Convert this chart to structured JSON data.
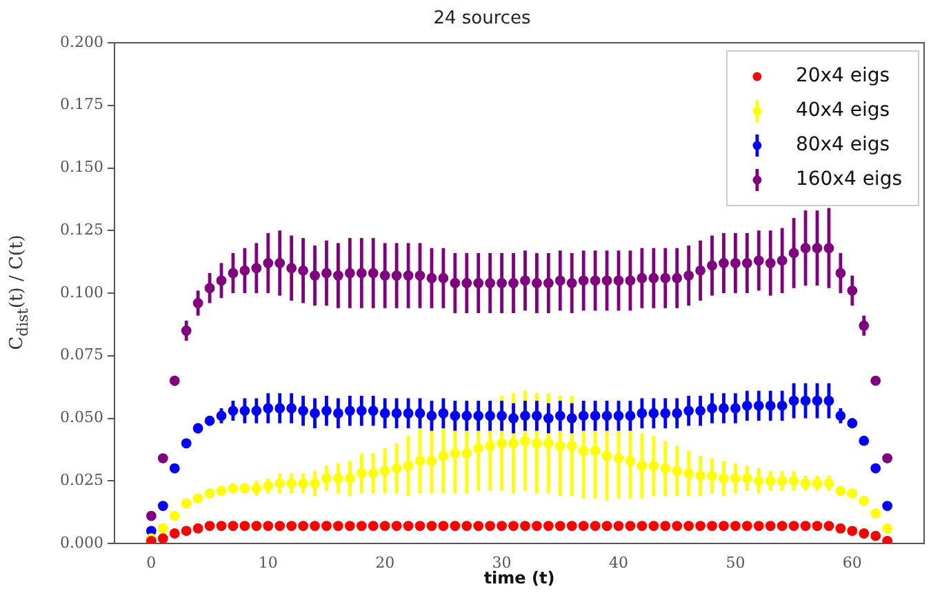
{
  "chart_data": {
    "type": "scatter",
    "title": "24 sources",
    "xlabel": "time (t)",
    "ylabel": "C$_{dist}$(t) / C(t)",
    "x": [
      0,
      1,
      2,
      3,
      4,
      5,
      6,
      7,
      8,
      9,
      10,
      11,
      12,
      13,
      14,
      15,
      16,
      17,
      18,
      19,
      20,
      21,
      22,
      23,
      24,
      25,
      26,
      27,
      28,
      29,
      30,
      31,
      32,
      33,
      34,
      35,
      36,
      37,
      38,
      39,
      40,
      41,
      42,
      43,
      44,
      45,
      46,
      47,
      48,
      49,
      50,
      51,
      52,
      53,
      54,
      55,
      56,
      57,
      58,
      59,
      60,
      61,
      62,
      63
    ],
    "series": [
      {
        "name": "20x4 eigs",
        "color": "#ff0000",
        "values": [
          0.001,
          0.002,
          0.004,
          0.005,
          0.006,
          0.007,
          0.007,
          0.007,
          0.007,
          0.007,
          0.007,
          0.007,
          0.007,
          0.007,
          0.007,
          0.007,
          0.007,
          0.007,
          0.007,
          0.007,
          0.007,
          0.007,
          0.007,
          0.007,
          0.007,
          0.007,
          0.007,
          0.007,
          0.007,
          0.007,
          0.007,
          0.007,
          0.007,
          0.007,
          0.007,
          0.007,
          0.007,
          0.007,
          0.007,
          0.007,
          0.007,
          0.007,
          0.007,
          0.007,
          0.007,
          0.007,
          0.007,
          0.007,
          0.007,
          0.007,
          0.007,
          0.007,
          0.007,
          0.007,
          0.007,
          0.007,
          0.007,
          0.007,
          0.007,
          0.006,
          0.005,
          0.004,
          0.003,
          0.001
        ]
      },
      {
        "name": "40x4 eigs",
        "color": "#ffff00",
        "values": [
          0.002,
          0.006,
          0.011,
          0.016,
          0.018,
          0.02,
          0.021,
          0.022,
          0.022,
          0.022,
          0.023,
          0.024,
          0.024,
          0.024,
          0.024,
          0.026,
          0.026,
          0.026,
          0.028,
          0.028,
          0.029,
          0.03,
          0.031,
          0.033,
          0.033,
          0.035,
          0.036,
          0.036,
          0.038,
          0.039,
          0.04,
          0.04,
          0.041,
          0.04,
          0.04,
          0.039,
          0.039,
          0.037,
          0.037,
          0.035,
          0.034,
          0.033,
          0.031,
          0.031,
          0.03,
          0.029,
          0.028,
          0.027,
          0.027,
          0.026,
          0.026,
          0.026,
          0.025,
          0.025,
          0.025,
          0.025,
          0.024,
          0.024,
          0.024,
          0.021,
          0.02,
          0.017,
          0.012,
          0.006
        ],
        "errors": [
          0.001,
          0.001,
          0.001,
          0.001,
          0.001,
          0.001,
          0.001,
          0.002,
          0.002,
          0.003,
          0.003,
          0.004,
          0.004,
          0.004,
          0.005,
          0.005,
          0.006,
          0.007,
          0.008,
          0.008,
          0.009,
          0.01,
          0.012,
          0.013,
          0.013,
          0.015,
          0.016,
          0.016,
          0.017,
          0.018,
          0.019,
          0.02,
          0.02,
          0.02,
          0.02,
          0.02,
          0.02,
          0.019,
          0.019,
          0.018,
          0.016,
          0.015,
          0.013,
          0.012,
          0.011,
          0.01,
          0.009,
          0.008,
          0.007,
          0.007,
          0.006,
          0.005,
          0.005,
          0.004,
          0.004,
          0.004,
          0.003,
          0.003,
          0.003,
          0.001,
          0.001,
          0.001,
          0.001,
          0.001
        ]
      },
      {
        "name": "80x4 eigs",
        "color": "#0000ff",
        "values": [
          0.005,
          0.015,
          0.03,
          0.04,
          0.046,
          0.049,
          0.051,
          0.053,
          0.053,
          0.053,
          0.054,
          0.054,
          0.054,
          0.053,
          0.052,
          0.053,
          0.052,
          0.053,
          0.053,
          0.053,
          0.052,
          0.052,
          0.052,
          0.052,
          0.051,
          0.052,
          0.051,
          0.051,
          0.051,
          0.051,
          0.051,
          0.05,
          0.051,
          0.051,
          0.05,
          0.051,
          0.05,
          0.051,
          0.051,
          0.051,
          0.051,
          0.051,
          0.052,
          0.052,
          0.052,
          0.052,
          0.053,
          0.053,
          0.054,
          0.054,
          0.054,
          0.055,
          0.055,
          0.055,
          0.055,
          0.057,
          0.057,
          0.057,
          0.057,
          0.051,
          0.048,
          0.041,
          0.03,
          0.015
        ],
        "errors": [
          0.001,
          0.001,
          0.001,
          0.001,
          0.002,
          0.002,
          0.003,
          0.004,
          0.005,
          0.005,
          0.006,
          0.006,
          0.006,
          0.006,
          0.006,
          0.006,
          0.006,
          0.006,
          0.006,
          0.006,
          0.006,
          0.006,
          0.006,
          0.006,
          0.006,
          0.006,
          0.006,
          0.006,
          0.006,
          0.006,
          0.006,
          0.006,
          0.006,
          0.006,
          0.006,
          0.006,
          0.006,
          0.006,
          0.006,
          0.006,
          0.006,
          0.006,
          0.006,
          0.006,
          0.006,
          0.006,
          0.006,
          0.006,
          0.006,
          0.006,
          0.006,
          0.006,
          0.006,
          0.006,
          0.006,
          0.007,
          0.007,
          0.007,
          0.007,
          0.003,
          0.002,
          0.001,
          0.001,
          0.001
        ]
      },
      {
        "name": "160x4 eigs",
        "color": "#800080",
        "values": [
          0.011,
          0.034,
          0.065,
          0.085,
          0.096,
          0.102,
          0.105,
          0.108,
          0.109,
          0.11,
          0.112,
          0.112,
          0.11,
          0.109,
          0.107,
          0.108,
          0.107,
          0.108,
          0.108,
          0.108,
          0.107,
          0.107,
          0.107,
          0.107,
          0.106,
          0.106,
          0.104,
          0.104,
          0.104,
          0.104,
          0.104,
          0.104,
          0.105,
          0.104,
          0.104,
          0.105,
          0.104,
          0.105,
          0.105,
          0.105,
          0.105,
          0.105,
          0.106,
          0.106,
          0.106,
          0.106,
          0.107,
          0.109,
          0.111,
          0.112,
          0.112,
          0.112,
          0.113,
          0.112,
          0.113,
          0.116,
          0.118,
          0.118,
          0.118,
          0.108,
          0.101,
          0.087,
          0.065,
          0.034
        ],
        "errors": [
          0.001,
          0.001,
          0.002,
          0.004,
          0.005,
          0.006,
          0.007,
          0.008,
          0.009,
          0.01,
          0.012,
          0.013,
          0.013,
          0.013,
          0.012,
          0.013,
          0.013,
          0.014,
          0.014,
          0.014,
          0.013,
          0.013,
          0.013,
          0.013,
          0.012,
          0.012,
          0.012,
          0.012,
          0.012,
          0.012,
          0.012,
          0.012,
          0.012,
          0.012,
          0.012,
          0.012,
          0.012,
          0.012,
          0.012,
          0.012,
          0.012,
          0.012,
          0.012,
          0.012,
          0.012,
          0.012,
          0.012,
          0.012,
          0.012,
          0.012,
          0.012,
          0.012,
          0.012,
          0.013,
          0.013,
          0.014,
          0.015,
          0.015,
          0.016,
          0.008,
          0.006,
          0.004,
          0.001,
          0.001
        ]
      }
    ],
    "xlim": [
      -3.15,
      66.15
    ],
    "xticks": [
      0,
      10,
      20,
      30,
      40,
      50,
      60
    ],
    "ylim": [
      0,
      0.2
    ],
    "yticks": [
      {
        "value": 0,
        "label": "0.000"
      },
      {
        "value": 0.025,
        "label": "0.025"
      },
      {
        "value": 0.05,
        "label": "0.050"
      },
      {
        "value": 0.075,
        "label": "0.075"
      },
      {
        "value": 0.1,
        "label": "0.100"
      },
      {
        "value": 0.125,
        "label": "0.125"
      },
      {
        "value": 0.15,
        "label": "0.150"
      },
      {
        "value": 0.175,
        "label": "0.175"
      },
      {
        "value": 0.2,
        "label": "0.200"
      }
    ],
    "grid": false,
    "legend": "top right",
    "marker": "circle"
  }
}
